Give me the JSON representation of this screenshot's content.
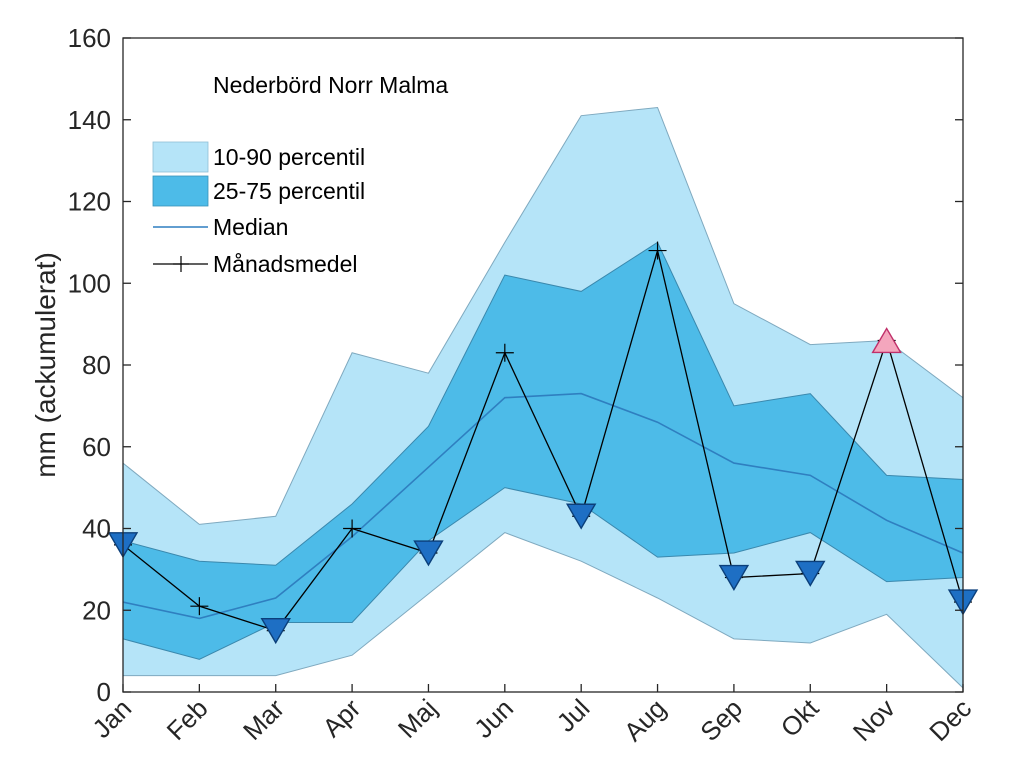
{
  "chart_data": {
    "type": "area",
    "title": "Nederbörd Norr Malma",
    "xlabel": "",
    "ylabel": "mm (ackumulerat)",
    "ylim": [
      0,
      160
    ],
    "yticks": [
      "0",
      "20",
      "40",
      "60",
      "80",
      "100",
      "120",
      "140",
      "160"
    ],
    "categories": [
      "Jan",
      "Feb",
      "Mar",
      "Apr",
      "Maj",
      "Jun",
      "Jul",
      "Aug",
      "Sep",
      "Okt",
      "Nov",
      "Dec"
    ],
    "p10": [
      4,
      4,
      4,
      9,
      24,
      39,
      32,
      23,
      13,
      12,
      19,
      1
    ],
    "p90": [
      56,
      41,
      43,
      83,
      78,
      110,
      141,
      143,
      95,
      85,
      86,
      72
    ],
    "p25": [
      13,
      8,
      17,
      17,
      37,
      50,
      46,
      33,
      34,
      39,
      27,
      28
    ],
    "p75": [
      37,
      32,
      31,
      46,
      65,
      102,
      98,
      110,
      70,
      73,
      53,
      52
    ],
    "median": [
      22,
      18,
      23,
      38,
      55,
      72,
      73,
      66,
      56,
      53,
      42,
      34
    ],
    "monthly_mean": [
      36,
      21,
      15,
      40,
      34,
      83,
      43,
      108,
      28,
      29,
      86,
      22
    ],
    "mean_markers": [
      "down",
      "none",
      "down",
      "none",
      "down",
      "none",
      "down",
      "none",
      "down",
      "down",
      "up",
      "down"
    ],
    "legend": {
      "placement": "top-left",
      "entries": [
        "10-90 percentil",
        "25-75 percentil",
        "Median",
        "Månadsmedel"
      ]
    },
    "colors": {
      "band_outer": "#b5e4f8",
      "band_inner": "#4dbbe8",
      "median": "#2f7fc0",
      "mean": "#000000",
      "down_marker": "#1e6fc4",
      "up_marker": "#f4a6bd",
      "up_marker_edge": "#c0306a",
      "axis": "#262626"
    }
  }
}
